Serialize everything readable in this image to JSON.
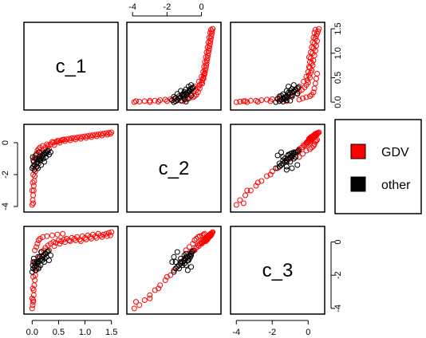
{
  "chart_data": {
    "type": "scatter",
    "variables": [
      "c_1",
      "c_2",
      "c_3"
    ],
    "ranges": {
      "c_1": [
        -0.08,
        1.55
      ],
      "c_2": [
        -4.1,
        0.9
      ],
      "c_3": [
        -4.1,
        0.7
      ]
    },
    "ticks": {
      "c_1": [
        {
          "value": 0.0,
          "label": "0.0"
        },
        {
          "value": 0.5,
          "label": "0.5"
        },
        {
          "value": 1.0,
          "label": "1.0"
        },
        {
          "value": 1.5,
          "label": "1.5"
        }
      ],
      "c_2": [
        {
          "value": -4,
          "label": "-4"
        },
        {
          "value": -2,
          "label": "-2"
        },
        {
          "value": 0,
          "label": "0"
        }
      ],
      "c_3": [
        {
          "value": -4,
          "label": "-4"
        },
        {
          "value": -2,
          "label": "-2"
        },
        {
          "value": 0,
          "label": "0"
        }
      ]
    },
    "legend": {
      "position": "right",
      "entries": [
        {
          "name": "GDV",
          "color": "#ff0000"
        },
        {
          "name": "other",
          "color": "#000000"
        }
      ]
    },
    "series": [
      {
        "name": "GDV",
        "color": "#ff0000",
        "points": [
          {
            "c_1": 0.01,
            "c_2": -3.6,
            "c_3": -3.8
          },
          {
            "c_1": 0.02,
            "c_2": -3.3,
            "c_3": -3.5
          },
          {
            "c_1": 0.03,
            "c_2": -3.0,
            "c_3": -3.2
          },
          {
            "c_1": 0.03,
            "c_2": -2.7,
            "c_3": -2.9
          },
          {
            "c_1": 0.04,
            "c_2": -2.4,
            "c_3": -2.6
          },
          {
            "c_1": 0.05,
            "c_2": -2.1,
            "c_3": -2.3
          },
          {
            "c_1": 0.06,
            "c_2": -1.8,
            "c_3": -2.0
          },
          {
            "c_1": 0.08,
            "c_2": -1.5,
            "c_3": -1.6
          },
          {
            "c_1": 0.1,
            "c_2": -1.2,
            "c_3": -1.3
          },
          {
            "c_1": 0.12,
            "c_2": -1.0,
            "c_3": -1.0
          },
          {
            "c_1": 0.15,
            "c_2": -0.8,
            "c_3": -0.9
          },
          {
            "c_1": 0.18,
            "c_2": -0.6,
            "c_3": -0.6
          },
          {
            "c_1": 0.22,
            "c_2": -0.45,
            "c_3": -0.5
          },
          {
            "c_1": 0.25,
            "c_2": -0.3,
            "c_3": -0.35
          },
          {
            "c_1": 0.3,
            "c_2": -0.2,
            "c_3": -0.2
          },
          {
            "c_1": 0.35,
            "c_2": -0.1,
            "c_3": -0.1
          },
          {
            "c_1": 0.4,
            "c_2": 0.0,
            "c_3": 0.0
          },
          {
            "c_1": 0.45,
            "c_2": 0.05,
            "c_3": -0.05
          },
          {
            "c_1": 0.5,
            "c_2": 0.1,
            "c_3": 0.1
          },
          {
            "c_1": 0.55,
            "c_2": 0.15,
            "c_3": 0.05
          },
          {
            "c_1": 0.6,
            "c_2": 0.2,
            "c_3": 0.15
          },
          {
            "c_1": 0.65,
            "c_2": 0.22,
            "c_3": 0.2
          },
          {
            "c_1": 0.7,
            "c_2": 0.25,
            "c_3": 0.1
          },
          {
            "c_1": 0.75,
            "c_2": 0.28,
            "c_3": 0.25
          },
          {
            "c_1": 0.8,
            "c_2": 0.3,
            "c_3": 0.2
          },
          {
            "c_1": 0.85,
            "c_2": 0.32,
            "c_3": 0.3
          },
          {
            "c_1": 0.9,
            "c_2": 0.35,
            "c_3": 0.15
          },
          {
            "c_1": 0.95,
            "c_2": 0.37,
            "c_3": 0.35
          },
          {
            "c_1": 1.0,
            "c_2": 0.4,
            "c_3": 0.25
          },
          {
            "c_1": 1.05,
            "c_2": 0.42,
            "c_3": 0.4
          },
          {
            "c_1": 1.1,
            "c_2": 0.45,
            "c_3": 0.3
          },
          {
            "c_1": 1.15,
            "c_2": 0.47,
            "c_3": 0.45
          },
          {
            "c_1": 1.2,
            "c_2": 0.5,
            "c_3": 0.35
          },
          {
            "c_1": 1.25,
            "c_2": 0.52,
            "c_3": 0.5
          },
          {
            "c_1": 1.3,
            "c_2": 0.55,
            "c_3": 0.4
          },
          {
            "c_1": 1.35,
            "c_2": 0.57,
            "c_3": 0.45
          },
          {
            "c_1": 1.4,
            "c_2": 0.6,
            "c_3": 0.5
          },
          {
            "c_1": 1.45,
            "c_2": 0.62,
            "c_3": 0.55
          },
          {
            "c_1": 1.5,
            "c_2": 0.65,
            "c_3": 0.6
          },
          {
            "c_1": 0.05,
            "c_2": -0.9,
            "c_3": -0.5
          },
          {
            "c_1": 0.08,
            "c_2": -0.7,
            "c_3": -0.3
          },
          {
            "c_1": 0.1,
            "c_2": -0.5,
            "c_3": -0.1
          },
          {
            "c_1": 0.12,
            "c_2": -0.4,
            "c_3": 0.1
          },
          {
            "c_1": 0.15,
            "c_2": -0.3,
            "c_3": 0.2
          },
          {
            "c_1": 0.2,
            "c_2": -0.2,
            "c_3": 0.3
          },
          {
            "c_1": 0.28,
            "c_2": -0.1,
            "c_3": 0.35
          },
          {
            "c_1": 0.38,
            "c_2": 0.05,
            "c_3": 0.4
          },
          {
            "c_1": 0.48,
            "c_2": 0.12,
            "c_3": 0.45
          },
          {
            "c_1": 0.58,
            "c_2": 0.18,
            "c_3": 0.5
          },
          {
            "c_1": 0.02,
            "c_2": -1.1,
            "c_3": -1.2
          },
          {
            "c_1": 0.04,
            "c_2": -1.4,
            "c_3": -1.5
          },
          {
            "c_1": 0.06,
            "c_2": -1.6,
            "c_3": -1.7
          },
          {
            "c_1": 0.02,
            "c_2": -2.0,
            "c_3": -2.1
          },
          {
            "c_1": 0.01,
            "c_2": -2.5,
            "c_3": -2.8
          },
          {
            "c_1": 0.0,
            "c_2": -3.0,
            "c_3": -3.4
          },
          {
            "c_1": 0.0,
            "c_2": -3.9,
            "c_3": -4.0
          },
          {
            "c_1": 0.02,
            "c_2": -3.8,
            "c_3": -3.6
          },
          {
            "c_1": 0.25,
            "c_2": -0.6,
            "c_3": -0.7
          },
          {
            "c_1": 0.32,
            "c_2": -0.4,
            "c_3": -0.5
          },
          {
            "c_1": 0.42,
            "c_2": -0.15,
            "c_3": -0.25
          },
          {
            "c_1": 0.52,
            "c_2": 0.0,
            "c_3": -0.1
          },
          {
            "c_1": 0.62,
            "c_2": 0.1,
            "c_3": 0.0
          },
          {
            "c_1": 0.72,
            "c_2": 0.15,
            "c_3": 0.05
          },
          {
            "c_1": 0.82,
            "c_2": 0.2,
            "c_3": 0.1
          },
          {
            "c_1": 0.92,
            "c_2": 0.25,
            "c_3": 0.05
          },
          {
            "c_1": 1.02,
            "c_2": 0.3,
            "c_3": 0.15
          },
          {
            "c_1": 1.12,
            "c_2": 0.35,
            "c_3": 0.2
          },
          {
            "c_1": 1.22,
            "c_2": 0.4,
            "c_3": 0.25
          },
          {
            "c_1": 1.32,
            "c_2": 0.45,
            "c_3": 0.3
          },
          {
            "c_1": 1.42,
            "c_2": 0.5,
            "c_3": 0.35
          },
          {
            "c_1": 1.48,
            "c_2": 0.55,
            "c_3": 0.4
          }
        ]
      },
      {
        "name": "other",
        "color": "#000000",
        "points": [
          {
            "c_1": 0.0,
            "c_2": -1.6,
            "c_3": -1.8
          },
          {
            "c_1": 0.02,
            "c_2": -1.5,
            "c_3": -1.6
          },
          {
            "c_1": 0.05,
            "c_2": -1.4,
            "c_3": -1.5
          },
          {
            "c_1": 0.08,
            "c_2": -1.3,
            "c_3": -1.4
          },
          {
            "c_1": 0.1,
            "c_2": -1.2,
            "c_3": -1.3
          },
          {
            "c_1": 0.12,
            "c_2": -1.1,
            "c_3": -1.2
          },
          {
            "c_1": 0.15,
            "c_2": -1.0,
            "c_3": -1.1
          },
          {
            "c_1": 0.18,
            "c_2": -0.9,
            "c_3": -1.0
          },
          {
            "c_1": 0.2,
            "c_2": -0.8,
            "c_3": -0.9
          },
          {
            "c_1": 0.22,
            "c_2": -0.7,
            "c_3": -0.8
          },
          {
            "c_1": 0.25,
            "c_2": -0.6,
            "c_3": -0.7
          },
          {
            "c_1": 0.28,
            "c_2": -0.55,
            "c_3": -0.6
          },
          {
            "c_1": 0.3,
            "c_2": -0.5,
            "c_3": -0.55
          },
          {
            "c_1": 0.03,
            "c_2": -1.2,
            "c_3": -1.0
          },
          {
            "c_1": 0.06,
            "c_2": -1.0,
            "c_3": -1.3
          },
          {
            "c_1": 0.09,
            "c_2": -1.5,
            "c_3": -1.2
          },
          {
            "c_1": 0.12,
            "c_2": -1.3,
            "c_3": -1.6
          },
          {
            "c_1": 0.14,
            "c_2": -0.9,
            "c_3": -0.9
          },
          {
            "c_1": 0.16,
            "c_2": -1.1,
            "c_3": -1.4
          },
          {
            "c_1": 0.19,
            "c_2": -0.8,
            "c_3": -1.1
          },
          {
            "c_1": 0.21,
            "c_2": -1.0,
            "c_3": -0.8
          },
          {
            "c_1": 0.24,
            "c_2": -0.7,
            "c_3": -1.0
          },
          {
            "c_1": 0.26,
            "c_2": -0.9,
            "c_3": -0.7
          },
          {
            "c_1": 0.01,
            "c_2": -0.9,
            "c_3": -1.4
          },
          {
            "c_1": 0.04,
            "c_2": -1.7,
            "c_3": -1.2
          },
          {
            "c_1": 0.07,
            "c_2": -0.8,
            "c_3": -1.7
          },
          {
            "c_1": 0.11,
            "c_2": -1.6,
            "c_3": -0.9
          },
          {
            "c_1": 0.13,
            "c_2": -0.6,
            "c_3": -1.5
          },
          {
            "c_1": 0.17,
            "c_2": -1.4,
            "c_3": -0.6
          },
          {
            "c_1": 0.23,
            "c_2": -1.2,
            "c_3": -1.2
          },
          {
            "c_1": 0.27,
            "c_2": -0.65,
            "c_3": -0.9
          },
          {
            "c_1": 0.32,
            "c_2": -0.75,
            "c_3": -1.1
          },
          {
            "c_1": 0.35,
            "c_2": -0.6,
            "c_3": -0.8
          }
        ]
      }
    ]
  }
}
